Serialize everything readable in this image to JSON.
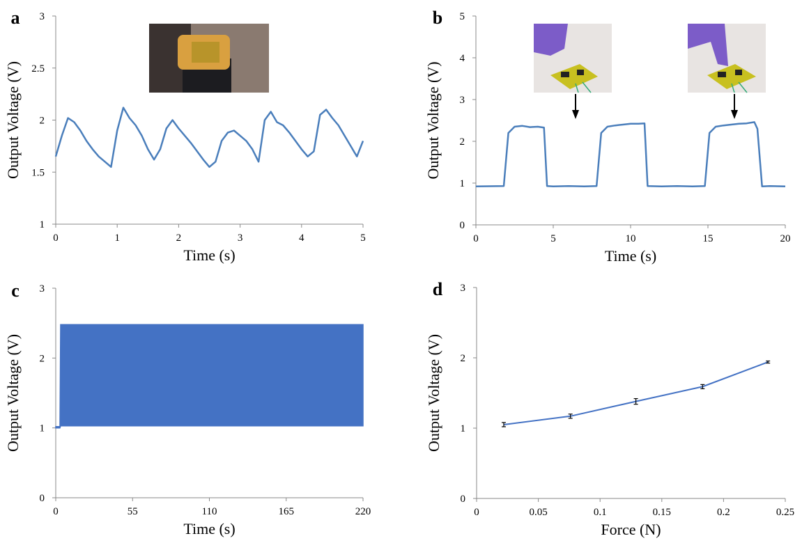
{
  "chart_data": [
    {
      "type": "line",
      "label": "a",
      "xlabel": "Time (s)",
      "ylabel": "Output Voltage (V)",
      "color": "#4a7ebb",
      "xlim": [
        0,
        5
      ],
      "ylim": [
        1,
        3
      ],
      "xticks": [
        0,
        1,
        2,
        3,
        4,
        5
      ],
      "yticks": [
        1,
        1.5,
        2,
        2.5,
        3
      ],
      "x": [
        0,
        0.1,
        0.2,
        0.3,
        0.4,
        0.5,
        0.6,
        0.7,
        0.8,
        0.9,
        1.0,
        1.1,
        1.2,
        1.3,
        1.4,
        1.5,
        1.6,
        1.7,
        1.8,
        1.9,
        2.0,
        2.1,
        2.2,
        2.3,
        2.4,
        2.5,
        2.6,
        2.7,
        2.8,
        2.9,
        3.0,
        3.1,
        3.2,
        3.3,
        3.4,
        3.5,
        3.6,
        3.7,
        3.8,
        3.9,
        4.0,
        4.1,
        4.2,
        4.3,
        4.4,
        4.5,
        4.6,
        4.7,
        4.8,
        4.9,
        5.0
      ],
      "values": [
        1.65,
        1.85,
        2.02,
        1.98,
        1.9,
        1.8,
        1.72,
        1.65,
        1.6,
        1.55,
        1.9,
        2.12,
        2.02,
        1.95,
        1.85,
        1.72,
        1.62,
        1.72,
        1.92,
        2.0,
        1.92,
        1.85,
        1.78,
        1.7,
        1.62,
        1.55,
        1.6,
        1.8,
        1.88,
        1.9,
        1.85,
        1.8,
        1.72,
        1.6,
        2.0,
        2.08,
        1.98,
        1.95,
        1.88,
        1.8,
        1.72,
        1.65,
        1.7,
        2.05,
        2.1,
        2.02,
        1.95,
        1.85,
        1.75,
        1.65,
        1.8
      ]
    },
    {
      "type": "line",
      "label": "b",
      "xlabel": "Time (s)",
      "ylabel": "Output Voltage (V)",
      "color": "#4a7ebb",
      "xlim": [
        0,
        20
      ],
      "ylim": [
        0,
        5
      ],
      "xticks": [
        0,
        5,
        10,
        15,
        20
      ],
      "yticks": [
        0,
        1,
        2,
        3,
        4,
        5
      ],
      "x": [
        0,
        1.8,
        2.1,
        2.5,
        3,
        3.5,
        4,
        4.4,
        4.6,
        5,
        6,
        7,
        7.8,
        8.1,
        8.5,
        9,
        9.5,
        10,
        10.5,
        10.9,
        11.1,
        12,
        13,
        14,
        14.8,
        15.1,
        15.5,
        16,
        16.5,
        17,
        17.5,
        18,
        18.2,
        18.5,
        19,
        20
      ],
      "values": [
        0.92,
        0.93,
        2.2,
        2.35,
        2.37,
        2.34,
        2.35,
        2.33,
        0.93,
        0.92,
        0.93,
        0.92,
        0.93,
        2.2,
        2.35,
        2.38,
        2.4,
        2.42,
        2.42,
        2.43,
        0.93,
        0.92,
        0.93,
        0.92,
        0.93,
        2.2,
        2.35,
        2.38,
        2.4,
        2.42,
        2.43,
        2.46,
        2.3,
        0.92,
        0.93,
        0.92
      ]
    },
    {
      "type": "band",
      "label": "c",
      "xlabel": "Time (s)",
      "ylabel": "Output Voltage (V)",
      "color": "#4472c4",
      "xlim": [
        0,
        220
      ],
      "ylim": [
        0,
        3
      ],
      "xticks": [
        0,
        55,
        110,
        165,
        220
      ],
      "yticks": [
        0,
        1,
        2,
        3
      ],
      "x": [
        0,
        3,
        3.5,
        220
      ],
      "upper": [
        1.02,
        1.02,
        2.48,
        2.48
      ],
      "lower": [
        1.0,
        1.0,
        1.03,
        1.03
      ]
    },
    {
      "type": "errorline",
      "label": "d",
      "xlabel": "Force (N)",
      "ylabel": "Output Voltage (V)",
      "color": "#4472c4",
      "xlim": [
        0,
        0.25
      ],
      "ylim": [
        0,
        3
      ],
      "xticks": [
        0,
        0.05,
        0.1,
        0.15,
        0.2,
        0.25
      ],
      "yticks": [
        0,
        1,
        2,
        3
      ],
      "x": [
        0.022,
        0.076,
        0.129,
        0.183,
        0.236
      ],
      "values": [
        1.05,
        1.17,
        1.38,
        1.59,
        1.94
      ],
      "errors": [
        0.03,
        0.03,
        0.04,
        0.03,
        0.015
      ]
    }
  ]
}
